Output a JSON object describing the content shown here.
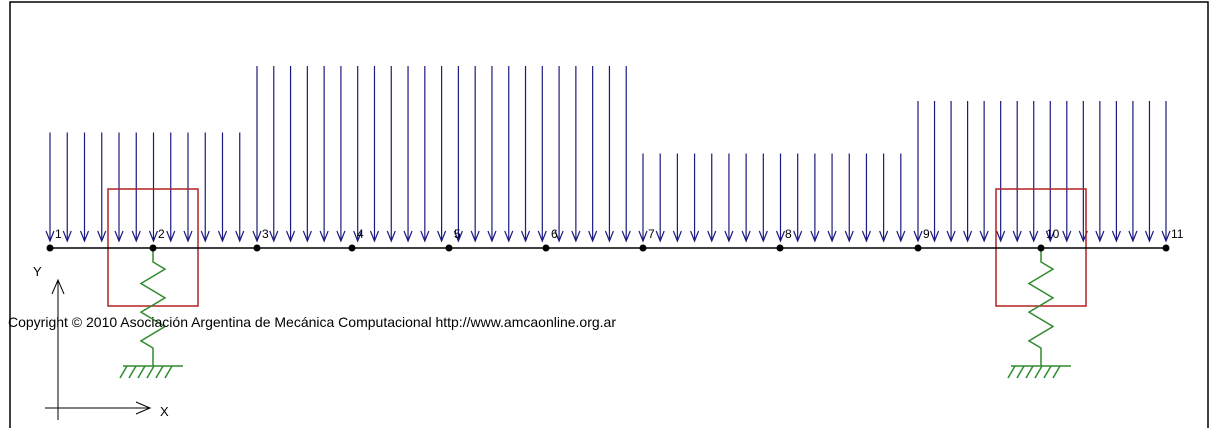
{
  "nodes": [
    "1",
    "2",
    "3",
    "4",
    "5",
    "6",
    "7",
    "8",
    "9",
    "10",
    "11"
  ],
  "axes": {
    "x_label": "X",
    "y_label": "Y"
  },
  "supports": [
    {
      "node": "2",
      "type": "spring"
    },
    {
      "node": "10",
      "type": "spring"
    }
  ],
  "loads": {
    "type": "distributed",
    "segments": [
      {
        "from_node": "1",
        "to_node": "3",
        "level": 0.62
      },
      {
        "from_node": "3",
        "to_node": "7",
        "level": 1.0
      },
      {
        "from_node": "7",
        "to_node": "9",
        "level": 0.5
      },
      {
        "from_node": "9",
        "to_node": "11",
        "level": 0.8
      }
    ]
  },
  "colors": {
    "beam": "#000000",
    "load_arrows": "#1a1a80",
    "spring": "#2e8b2e",
    "highlight_box": "#b22222",
    "frame": "#000000"
  },
  "footer": {
    "copyright": "Copyright © 2010 Asociación Argentina de Mecánica Computacional http://www.amcaonline.org.ar"
  }
}
